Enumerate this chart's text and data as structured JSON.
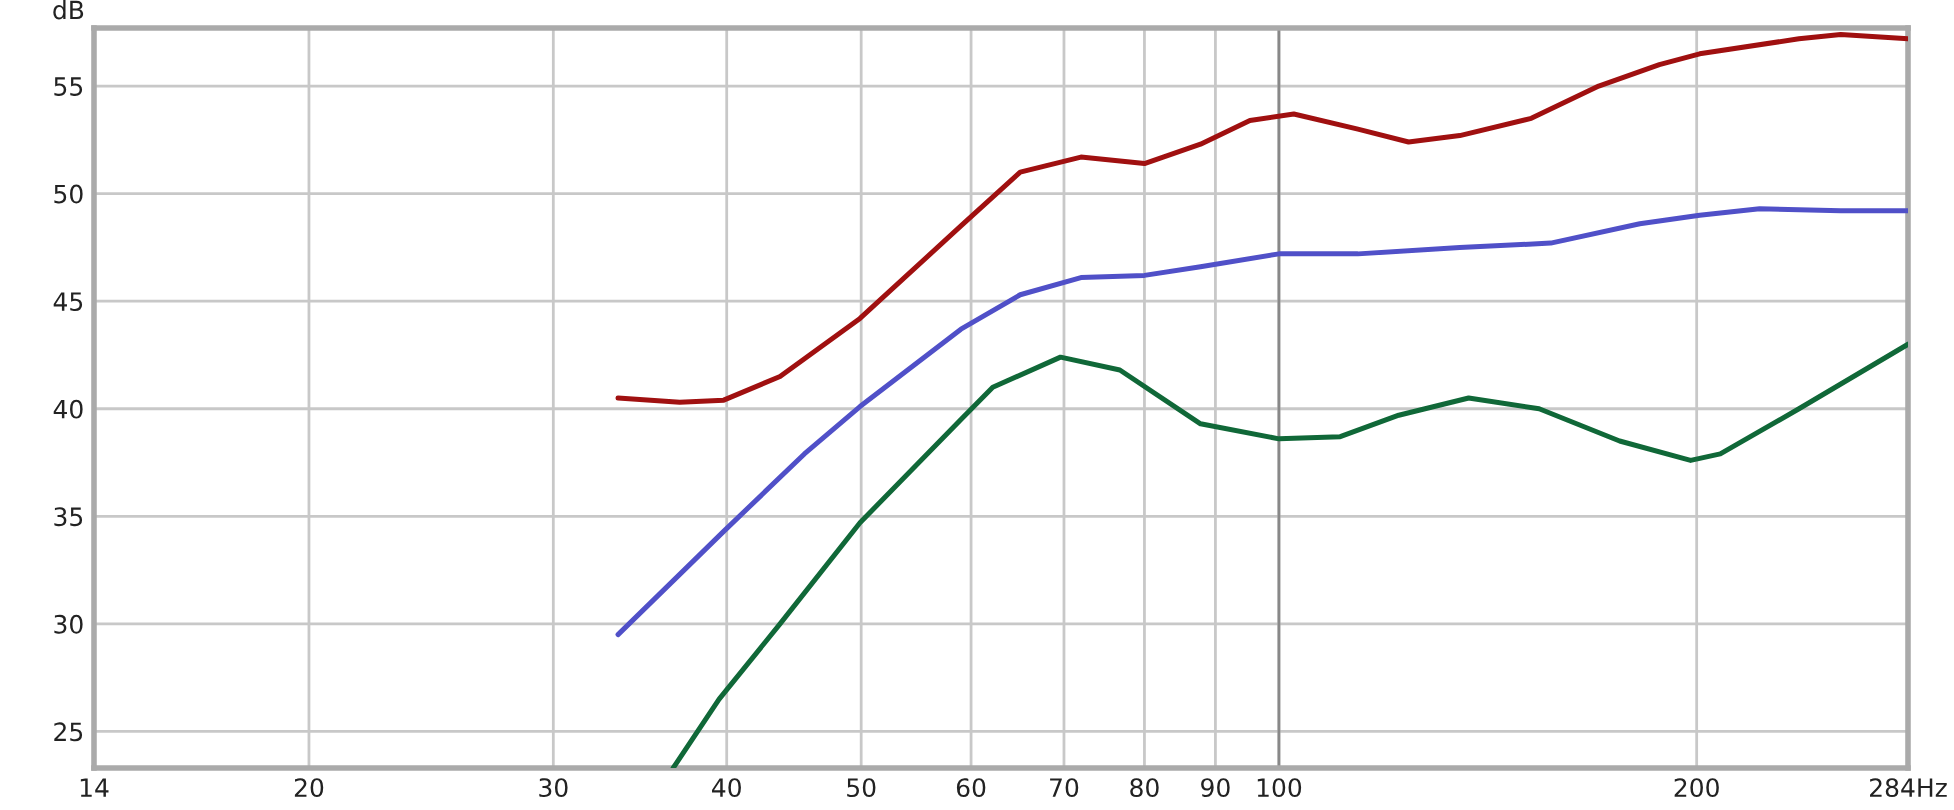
{
  "chart_data": {
    "type": "line",
    "ylabel": "dB",
    "log": "x",
    "grid": true,
    "marker": "none",
    "line_style": "solid",
    "xlim": [
      14,
      284
    ],
    "ylim": [
      23.3,
      57.7
    ],
    "xticks": [
      14,
      20,
      30,
      40,
      50,
      60,
      70,
      80,
      90,
      100,
      200,
      {
        "value": 284,
        "label": "284Hz"
      }
    ],
    "yticks": [
      25,
      30,
      35,
      40,
      45,
      50,
      55
    ],
    "ref_lines": [
      {
        "axis": "x",
        "value": 100,
        "color": "#888888"
      }
    ],
    "series": [
      {
        "color": "#a01010",
        "x": [
          33.4,
          37.0,
          39.8,
          43.7,
          49.9,
          59,
          65.1,
          72,
          80,
          87.8,
          95.3,
          102.5,
          114,
          124,
          135,
          152,
          170,
          188,
          201,
          237,
          254,
          284
        ],
        "values": [
          40.5,
          40.3,
          40.4,
          41.5,
          44.2,
          48.5,
          51.0,
          51.7,
          51.4,
          52.3,
          53.4,
          53.7,
          53.0,
          52.4,
          52.7,
          53.5,
          55.0,
          56.0,
          56.5,
          57.2,
          57.4,
          57.2
        ]
      },
      {
        "color": "#5050c8",
        "x": [
          33.4,
          37.0,
          39.8,
          45.5,
          49.9,
          59,
          65.1,
          72,
          80,
          87.8,
          100,
          114,
          135,
          157,
          182,
          201,
          222,
          254,
          284
        ],
        "values": [
          29.5,
          32.3,
          34.3,
          37.9,
          40.1,
          43.7,
          45.3,
          46.1,
          46.2,
          46.6,
          47.2,
          47.2,
          47.5,
          47.7,
          48.6,
          49.0,
          49.3,
          49.2,
          49.2
        ]
      },
      {
        "color": "#106838",
        "x": [
          36.6,
          39.5,
          43.7,
          49.9,
          59,
          62.2,
          69.6,
          76.8,
          87.8,
          100,
          110.7,
          122,
          137,
          154,
          176,
          198,
          208,
          237,
          284
        ],
        "values": [
          23.3,
          26.5,
          30.0,
          34.7,
          39.5,
          41.0,
          42.4,
          41.8,
          39.3,
          38.6,
          38.7,
          39.7,
          40.5,
          40.0,
          38.5,
          37.6,
          37.9,
          40.0,
          43.0
        ]
      }
    ]
  }
}
